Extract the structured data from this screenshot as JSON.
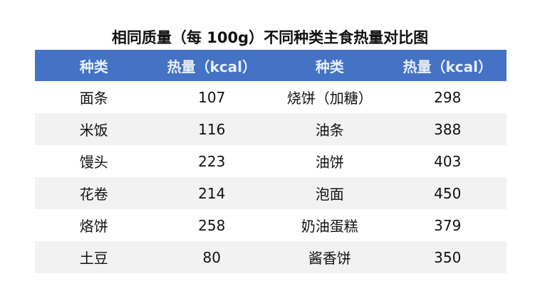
{
  "chart_data": {
    "type": "table",
    "title": "相同质量（每 100g）不同种类主食热量对比图",
    "headers": [
      "种类",
      "热量（kcal）",
      "种类",
      "热量（kcal）"
    ],
    "rows": [
      [
        "面条",
        "107",
        "烧饼（加糖）",
        "298"
      ],
      [
        "米饭",
        "116",
        "油条",
        "388"
      ],
      [
        "馒头",
        "223",
        "油饼",
        "403"
      ],
      [
        "花卷",
        "214",
        "泡面",
        "450"
      ],
      [
        "烙饼",
        "258",
        "奶油蛋糕",
        "379"
      ],
      [
        "土豆",
        "80",
        "酱香饼",
        "350"
      ]
    ],
    "colors": {
      "header_bg": "#4472C4",
      "alt_row_bg": "#f2f2f2"
    }
  }
}
